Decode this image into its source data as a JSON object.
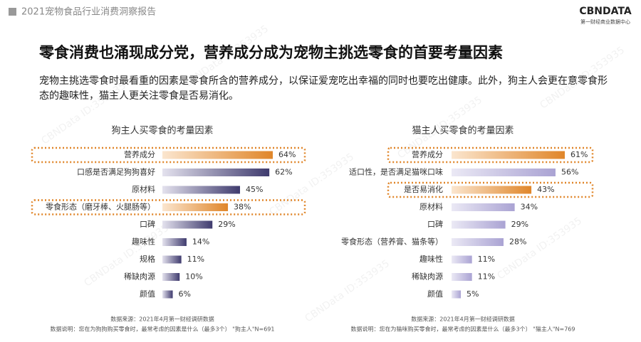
{
  "header": {
    "report": "2021宠物食品行业消费洞察报告",
    "logo": "CBNDATA",
    "logo_sub": "第一财经商业数据中心"
  },
  "title": "零食消费也涌现成分党，营养成分成为宠物主挑选零食的首要考量因素",
  "subtitle": "宠物主挑选零食时最看重的因素是零食所含的营养成分，以保证爱宠吃出幸福的同时也要吃出健康。此外，狗主人会更在意零食形态的趣味性，猫主人更关注零食是否易消化。",
  "watermark": "CBNData ID:353935",
  "chart_data": [
    {
      "type": "bar",
      "orientation": "horizontal",
      "title": "狗主人买零食的考量因素",
      "categories": [
        "营养成分",
        "口感是否满足狗狗喜好",
        "原材料",
        "零食形态（磨牙棒、火腿肠等）",
        "口碑",
        "趣味性",
        "规格",
        "稀缺肉源",
        "颜值"
      ],
      "values": [
        64,
        62,
        45,
        38,
        29,
        14,
        11,
        10,
        6
      ],
      "value_labels": [
        "64%",
        "62%",
        "45%",
        "38%",
        "29%",
        "14%",
        "11%",
        "10%",
        "6%"
      ],
      "color": "#3f3b6e",
      "light_color": "#e4e2ee",
      "highlight": [
        0,
        3
      ],
      "highlight_color": "#e0862a",
      "xlim": [
        0,
        64
      ],
      "source": "数据来源：2021年4月第一财经调研数据",
      "note": "数据说明：您在为狗狗购买零食时，最常考虑的因素是什么（最多3个）  \"狗主人\"N=691"
    },
    {
      "type": "bar",
      "orientation": "horizontal",
      "title": "猫主人买零食的考量因素",
      "categories": [
        "营养成分",
        "适口性，是否满足猫咪口味",
        "是否易消化",
        "原材料",
        "口碑",
        "零食形态（营养膏、猫条等）",
        "趣味性",
        "稀缺肉源",
        "颜值"
      ],
      "values": [
        61,
        56,
        43,
        34,
        29,
        28,
        11,
        11,
        5
      ],
      "value_labels": [
        "61%",
        "56%",
        "43%",
        "34%",
        "29%",
        "28%",
        "11%",
        "11%",
        "5%"
      ],
      "color": "#aaa3d3",
      "light_color": "#ebe9f5",
      "highlight": [
        0,
        2
      ],
      "highlight_color": "#e0862a",
      "xlim": [
        0,
        61
      ],
      "source": "数据来源：2021年4月第一财经调研数据",
      "note": "数据说明：您在为猫咪购买零食时，最常考虑的因素是什么（最多3个）  \"猫主人\"N=769"
    }
  ]
}
